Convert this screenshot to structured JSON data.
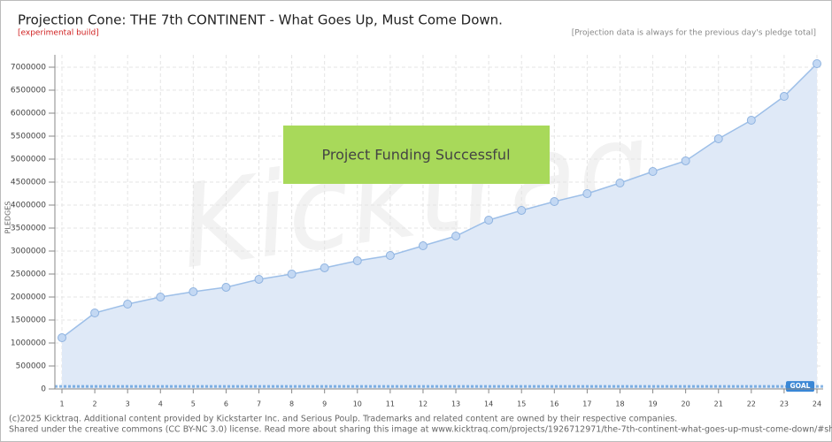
{
  "chart_data": {
    "type": "area",
    "title": "Projection Cone: THE 7th CONTINENT - What Goes Up, Must Come Down.",
    "subtitle": "[experimental build]",
    "note": "[Projection data is always for the previous day's pledge total]",
    "y_label": "PLEDGES",
    "banner": "Project Funding Successful",
    "watermark": "Kicktraq",
    "footer": [
      "(c)2025 Kicktraq. Additional content provided by Kickstarter Inc. and Serious Poulp. Trademarks and related content are owned by their respective companies.",
      "Shared under the creative commons (CC BY-NC 3.0) license. Read more about sharing this image at www.kicktraq.com/projects/1926712971/the-7th-continent-what-goes-up-must-come-down/#shari"
    ],
    "x": [
      1,
      2,
      3,
      4,
      5,
      6,
      7,
      8,
      9,
      10,
      11,
      12,
      13,
      14,
      15,
      16,
      17,
      18,
      19,
      20,
      21,
      22,
      23,
      24
    ],
    "series": [
      {
        "name": "Projection",
        "color": "#9dbfe8",
        "values": [
          1115000,
          1654000,
          1846000,
          2000000,
          2115000,
          2212000,
          2385000,
          2500000,
          2635000,
          2788000,
          2904000,
          3115000,
          3327000,
          3673000,
          3885000,
          4077000,
          4250000,
          4481000,
          4731000,
          4962000,
          5442000,
          5846000,
          6365000,
          7077000
        ]
      }
    ],
    "goal": {
      "label": "GOAL",
      "value": 55000,
      "color": "#3a87d6"
    },
    "xlim": [
      1,
      24
    ],
    "xticks": [
      1,
      2,
      3,
      4,
      5,
      6,
      7,
      8,
      9,
      10,
      11,
      12,
      13,
      14,
      15,
      16,
      17,
      18,
      19,
      20,
      21,
      22,
      23,
      24
    ],
    "ylim": [
      0,
      7000000
    ],
    "yticks": [
      0,
      500000,
      1000000,
      1500000,
      2000000,
      2500000,
      3000000,
      3500000,
      4000000,
      4500000,
      5000000,
      5500000,
      6000000,
      6500000,
      7000000
    ],
    "grid": true
  }
}
